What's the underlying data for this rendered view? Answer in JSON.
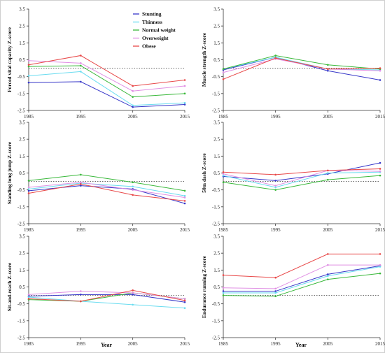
{
  "colors": {
    "stunting": "#3535c8",
    "thinness": "#69dcf0",
    "normal_weight": "#39b83a",
    "overweight": "#e090e4",
    "obese": "#e84848",
    "reference_line": "#555555",
    "axis": "#333333"
  },
  "legend": {
    "placement": "top-right of top-left panel",
    "items": [
      {
        "name": "Stunting",
        "color": "#3535c8"
      },
      {
        "name": "Thinness",
        "color": "#69dcf0"
      },
      {
        "name": "Normal weight",
        "color": "#39b83a"
      },
      {
        "name": "Overweight",
        "color": "#e090e4"
      },
      {
        "name": "Obese",
        "color": "#e84848"
      }
    ]
  },
  "xlabel": "Year",
  "chart_data": [
    {
      "type": "line",
      "x": [
        1985,
        1995,
        2005,
        2015
      ],
      "xticks": [
        "1985",
        "1995",
        "2005",
        "2015"
      ],
      "yticks": [
        "3.5",
        "2.5",
        "1.5",
        "0.5",
        "-0.5",
        "-1.5",
        "-2.5"
      ],
      "ylim": [
        -2.5,
        3.5
      ],
      "ylabel": "Forced vital capacity Z-score",
      "reference_y": 0,
      "grid": false,
      "series": [
        {
          "name": "Stunting",
          "color": "#3535c8",
          "values": [
            -0.85,
            -0.8,
            -2.3,
            -2.15
          ]
        },
        {
          "name": "Thinness",
          "color": "#69dcf0",
          "values": [
            -0.45,
            -0.2,
            -2.2,
            -2.05
          ]
        },
        {
          "name": "Normal weight",
          "color": "#39b83a",
          "values": [
            0.1,
            0.15,
            -1.7,
            -1.5
          ]
        },
        {
          "name": "Overweight",
          "color": "#e090e4",
          "values": [
            0.45,
            0.3,
            -1.35,
            -1.05
          ]
        },
        {
          "name": "Obese",
          "color": "#e84848",
          "values": [
            0.2,
            0.75,
            -1.05,
            -0.7
          ]
        }
      ]
    },
    {
      "type": "line",
      "x": [
        1985,
        1995,
        2005,
        2015
      ],
      "xticks": [
        "1985",
        "1995",
        "2005",
        "2015"
      ],
      "yticks": [
        "3.5",
        "2.5",
        "1.5",
        "0.5",
        "-0.5",
        "-1.5",
        "-2.5"
      ],
      "ylim": [
        -2.5,
        3.5
      ],
      "ylabel": "Muscle strength Z-score",
      "reference_y": 0,
      "grid": false,
      "series": [
        {
          "name": "Stunting",
          "color": "#3535c8",
          "values": [
            -0.1,
            0.65,
            -0.15,
            -0.7
          ]
        },
        {
          "name": "Thinness",
          "color": "#69dcf0",
          "values": [
            -0.05,
            0.65,
            -0.05,
            -0.1
          ]
        },
        {
          "name": "Normal weight",
          "color": "#39b83a",
          "values": [
            -0.05,
            0.75,
            0.2,
            -0.05
          ]
        },
        {
          "name": "Overweight",
          "color": "#e090e4",
          "values": [
            -0.25,
            0.55,
            -0.05,
            -0.15
          ]
        },
        {
          "name": "Obese",
          "color": "#e84848",
          "values": [
            -0.65,
            0.6,
            -0.05,
            0.0
          ]
        }
      ]
    },
    {
      "type": "line",
      "x": [
        1985,
        1995,
        2005,
        2015
      ],
      "xticks": [
        "1985",
        "1995",
        "2005",
        "2015"
      ],
      "yticks": [
        "3.5",
        "2.5",
        "1.5",
        "0.5",
        "-0.5",
        "-1.5",
        "-2.5"
      ],
      "ylim": [
        -2.5,
        3.5
      ],
      "ylabel": "Standing long jump Z-score",
      "reference_y": 0,
      "grid": false,
      "series": [
        {
          "name": "Stunting",
          "color": "#3535c8",
          "values": [
            -0.55,
            -0.25,
            -0.45,
            -1.3
          ]
        },
        {
          "name": "Thinness",
          "color": "#69dcf0",
          "values": [
            -0.45,
            -0.1,
            -0.3,
            -0.85
          ]
        },
        {
          "name": "Normal weight",
          "color": "#39b83a",
          "values": [
            0.05,
            0.4,
            -0.05,
            -0.55
          ]
        },
        {
          "name": "Overweight",
          "color": "#e090e4",
          "values": [
            -0.35,
            -0.05,
            -0.5,
            -0.95
          ]
        },
        {
          "name": "Obese",
          "color": "#e84848",
          "values": [
            -0.7,
            -0.15,
            -0.8,
            -1.15
          ]
        }
      ]
    },
    {
      "type": "line",
      "x": [
        1985,
        1995,
        2005,
        2015
      ],
      "xticks": [
        "1985",
        "1995",
        "2005",
        "2015"
      ],
      "yticks": [
        "3.5",
        "2.5",
        "1.5",
        "0.5",
        "-0.5",
        "-1.5",
        "-2.5"
      ],
      "ylim": [
        -2.5,
        3.5
      ],
      "ylabel": "50m dash Z-score",
      "reference_y": 0,
      "grid": false,
      "series": [
        {
          "name": "Stunting",
          "color": "#3535c8",
          "values": [
            0.3,
            0.05,
            0.45,
            1.1
          ]
        },
        {
          "name": "Thinness",
          "color": "#69dcf0",
          "values": [
            0.35,
            -0.35,
            0.5,
            0.55
          ]
        },
        {
          "name": "Normal weight",
          "color": "#39b83a",
          "values": [
            -0.05,
            -0.5,
            0.1,
            0.35
          ]
        },
        {
          "name": "Overweight",
          "color": "#e090e4",
          "values": [
            0.45,
            -0.25,
            0.65,
            0.6
          ]
        },
        {
          "name": "Obese",
          "color": "#e84848",
          "values": [
            0.55,
            0.4,
            0.65,
            0.75
          ]
        }
      ]
    },
    {
      "type": "line",
      "x": [
        1985,
        1995,
        2005,
        2015
      ],
      "xticks": [
        "1985",
        "1995",
        "2005",
        "2015"
      ],
      "yticks": [
        "3.5",
        "2.5",
        "1.5",
        "0.5",
        "-0.5",
        "-1.5",
        "-2.5"
      ],
      "ylim": [
        -2.5,
        3.5
      ],
      "ylabel": "Sit-and-reach Z-score",
      "reference_y": 0,
      "grid": false,
      "series": [
        {
          "name": "Stunting",
          "color": "#3535c8",
          "values": [
            -0.05,
            0.05,
            0.05,
            -0.4
          ]
        },
        {
          "name": "Thinness",
          "color": "#69dcf0",
          "values": [
            -0.1,
            -0.35,
            -0.55,
            -0.75
          ]
        },
        {
          "name": "Normal weight",
          "color": "#39b83a",
          "values": [
            -0.25,
            -0.35,
            0.15,
            -0.2
          ]
        },
        {
          "name": "Overweight",
          "color": "#e090e4",
          "values": [
            0.05,
            0.25,
            0.15,
            -0.2
          ]
        },
        {
          "name": "Obese",
          "color": "#e84848",
          "values": [
            -0.2,
            -0.35,
            0.3,
            -0.3
          ]
        }
      ]
    },
    {
      "type": "line",
      "x": [
        1985,
        1995,
        2005,
        2015
      ],
      "xticks": [
        "1985",
        "1995",
        "2005",
        "2015"
      ],
      "yticks": [
        "3.5",
        "2.5",
        "1.5",
        "0.5",
        "-0.5",
        "-1.5",
        "-2.5"
      ],
      "ylim": [
        -2.5,
        3.5
      ],
      "ylabel": "Endurance running Z-score",
      "reference_y": 0,
      "grid": false,
      "series": [
        {
          "name": "Stunting",
          "color": "#3535c8",
          "values": [
            0.25,
            0.25,
            1.25,
            1.75
          ]
        },
        {
          "name": "Thinness",
          "color": "#69dcf0",
          "values": [
            0.15,
            0.15,
            1.15,
            1.7
          ]
        },
        {
          "name": "Normal weight",
          "color": "#39b83a",
          "values": [
            0.0,
            -0.05,
            0.95,
            1.3
          ]
        },
        {
          "name": "Overweight",
          "color": "#e090e4",
          "values": [
            0.45,
            0.4,
            1.8,
            1.8
          ]
        },
        {
          "name": "Obese",
          "color": "#e84848",
          "values": [
            1.2,
            1.05,
            2.45,
            2.45
          ]
        }
      ]
    }
  ]
}
